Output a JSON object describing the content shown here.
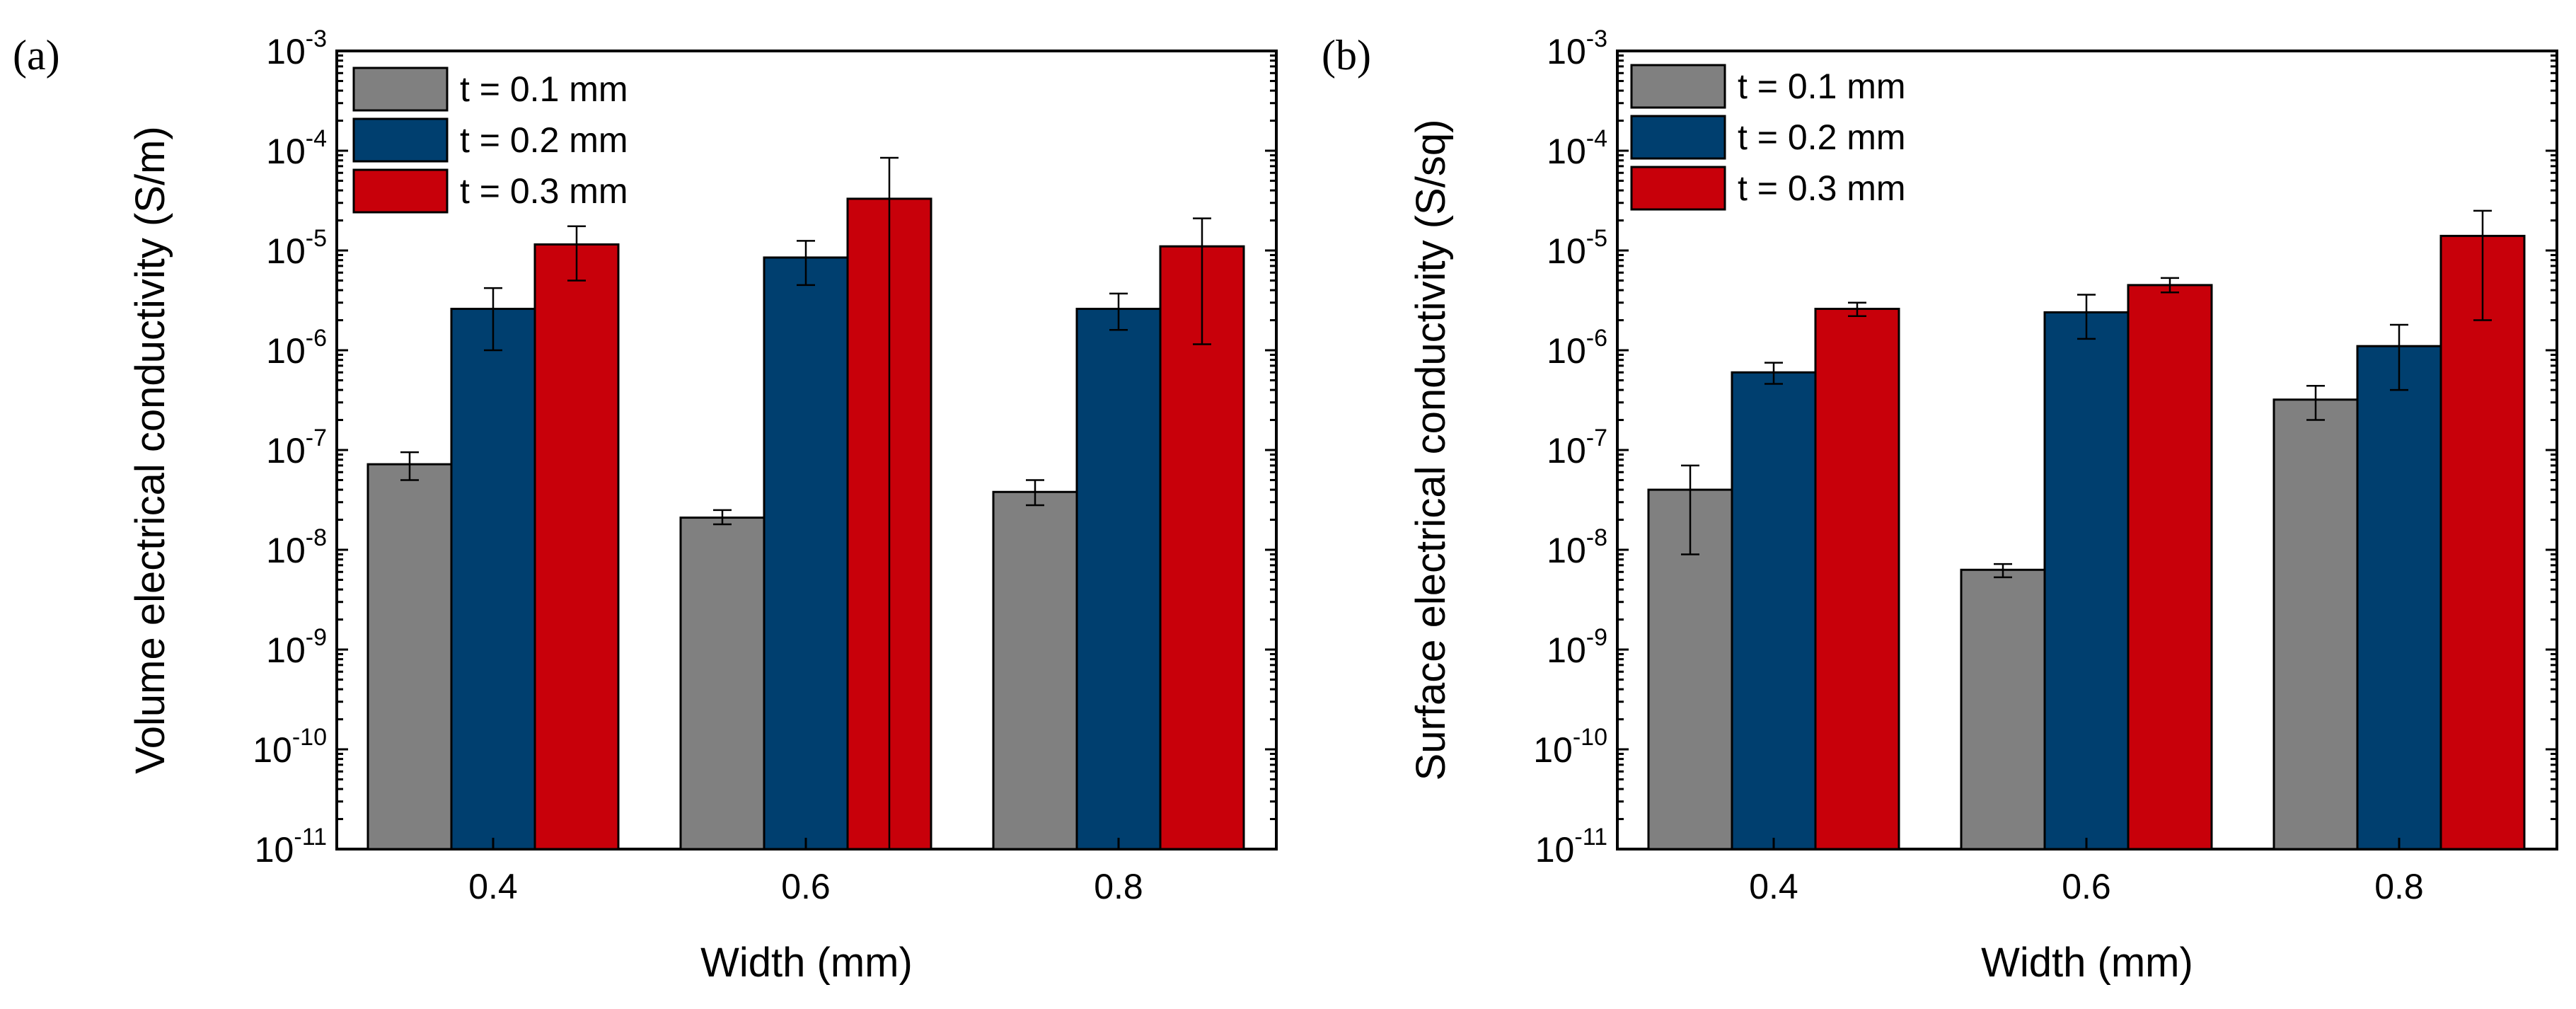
{
  "chart_data": [
    {
      "type": "bar",
      "panel_label": "(a)",
      "xlabel": "Width (mm)",
      "ylabel": "Volume electrical conductivity (S/m)",
      "yscale": "log",
      "ylim": [
        1e-11,
        0.001
      ],
      "y_ticks": [
        {
          "base": "10",
          "exp": "-11"
        },
        {
          "base": "10",
          "exp": "-10"
        },
        {
          "base": "10",
          "exp": "-9"
        },
        {
          "base": "10",
          "exp": "-8"
        },
        {
          "base": "10",
          "exp": "-7"
        },
        {
          "base": "10",
          "exp": "-6"
        },
        {
          "base": "10",
          "exp": "-5"
        },
        {
          "base": "10",
          "exp": "-4"
        },
        {
          "base": "10",
          "exp": "-3"
        }
      ],
      "categories": [
        "0.4",
        "0.6",
        "0.8"
      ],
      "legend_position": "top-left",
      "series": [
        {
          "name": "t = 0.1 mm",
          "color": "#808080",
          "values": [
            7.2e-08,
            2.1e-08,
            3.8e-08
          ],
          "err_low": [
            5e-08,
            1.8e-08,
            2.8e-08
          ],
          "err_high": [
            9.5e-08,
            2.5e-08,
            5e-08
          ]
        },
        {
          "name": "t = 0.2 mm",
          "color": "#003f6f",
          "values": [
            2.6e-06,
            8.5e-06,
            2.6e-06
          ],
          "err_low": [
            1e-06,
            4.5e-06,
            1.6e-06
          ],
          "err_high": [
            4.2e-06,
            1.25e-05,
            3.7e-06
          ]
        },
        {
          "name": "t = 0.3 mm",
          "color": "#c8000a",
          "values": [
            1.15e-05,
            3.3e-05,
            1.1e-05
          ],
          "err_low": [
            5e-06,
            1e-11,
            1.15e-06
          ],
          "err_high": [
            1.75e-05,
            8.5e-05,
            2.1e-05
          ]
        }
      ]
    },
    {
      "type": "bar",
      "panel_label": "(b)",
      "xlabel": "Width (mm)",
      "ylabel": "Surface electrical conductivity (S/sq)",
      "yscale": "log",
      "ylim": [
        1e-11,
        0.001
      ],
      "y_ticks": [
        {
          "base": "10",
          "exp": "-11"
        },
        {
          "base": "10",
          "exp": "-10"
        },
        {
          "base": "10",
          "exp": "-9"
        },
        {
          "base": "10",
          "exp": "-8"
        },
        {
          "base": "10",
          "exp": "-7"
        },
        {
          "base": "10",
          "exp": "-6"
        },
        {
          "base": "10",
          "exp": "-5"
        },
        {
          "base": "10",
          "exp": "-4"
        },
        {
          "base": "10",
          "exp": "-3"
        }
      ],
      "categories": [
        "0.4",
        "0.6",
        "0.8"
      ],
      "legend_position": "top-left",
      "series": [
        {
          "name": "t = 0.1 mm",
          "color": "#808080",
          "values": [
            4e-08,
            6.3e-09,
            3.2e-07
          ],
          "err_low": [
            9e-09,
            5.3e-09,
            2e-07
          ],
          "err_high": [
            7e-08,
            7.2e-09,
            4.4e-07
          ]
        },
        {
          "name": "t = 0.2 mm",
          "color": "#003f6f",
          "values": [
            6e-07,
            2.4e-06,
            1.1e-06
          ],
          "err_low": [
            4.6e-07,
            1.3e-06,
            4e-07
          ],
          "err_high": [
            7.5e-07,
            3.6e-06,
            1.8e-06
          ]
        },
        {
          "name": "t = 0.3 mm",
          "color": "#c8000a",
          "values": [
            2.6e-06,
            4.5e-06,
            1.4e-05
          ],
          "err_low": [
            2.2e-06,
            3.8e-06,
            2e-06
          ],
          "err_high": [
            3e-06,
            5.3e-06,
            2.5e-05
          ]
        }
      ]
    }
  ]
}
